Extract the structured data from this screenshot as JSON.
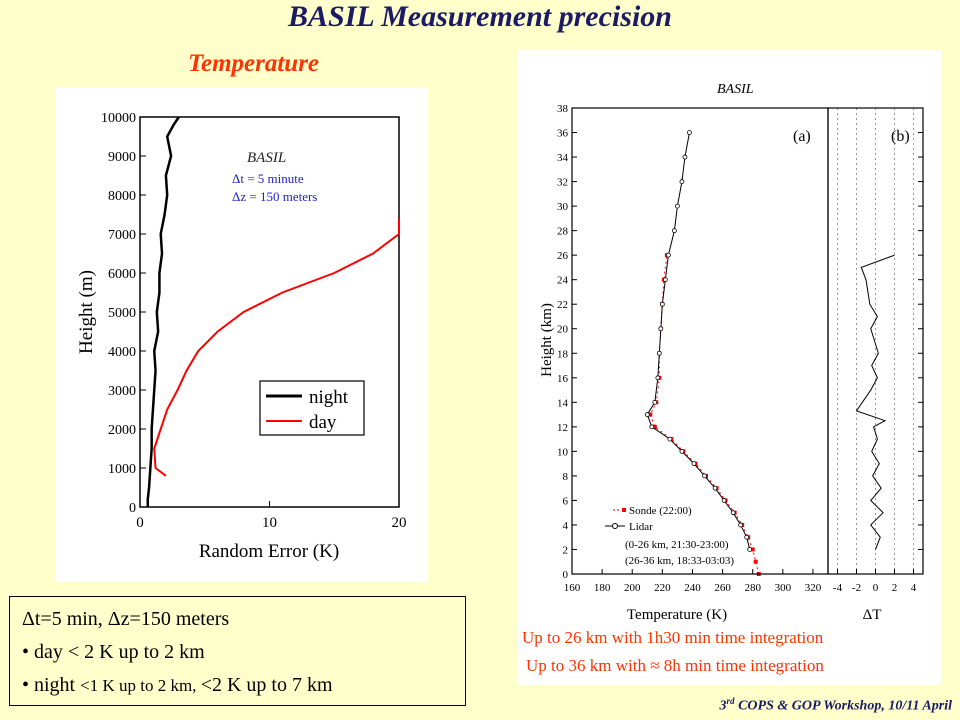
{
  "header": {
    "title": "BASIL Measurement precision",
    "subtitle": "Temperature"
  },
  "notes": {
    "line1": "Δt=5 min, Δz=150 meters",
    "line2": "• day < 2 K up to 2 km",
    "line3a": "• night ",
    "line3b": "<1 K up to 2 km, ",
    "line3c": "<2 K up to 7 km"
  },
  "captions": {
    "line1": "Up to 26 km with 1h30 min time integration",
    "line2": "Up to 36 km with ≈ 8h min time integration"
  },
  "footer": {
    "ord": "3",
    "sup": "rd",
    "text": " COPS & GOP Workshop, 10/11 April"
  },
  "chart_data": [
    {
      "type": "line",
      "xlabel": "Random Error (K)",
      "ylabel": "Height (m)",
      "xlim": [
        0,
        20
      ],
      "ylim": [
        0,
        10000
      ],
      "xticks": [
        0,
        10,
        20
      ],
      "yticks": [
        0,
        1000,
        2000,
        3000,
        4000,
        5000,
        6000,
        7000,
        8000,
        9000,
        10000
      ],
      "annotation": [
        "BASIL",
        "Δt = 5 minute",
        "Δz = 150 meters"
      ],
      "legend": {
        "position": "bottom-right",
        "entries": [
          "night",
          "day"
        ]
      },
      "colors": {
        "night": "#000000",
        "day": "#ff0000"
      },
      "series": [
        {
          "name": "night",
          "points": [
            [
              0.6,
              0
            ],
            [
              0.6,
              200
            ],
            [
              0.7,
              500
            ],
            [
              0.8,
              1000
            ],
            [
              0.9,
              1500
            ],
            [
              0.9,
              2000
            ],
            [
              1.0,
              2500
            ],
            [
              1.1,
              3000
            ],
            [
              1.2,
              3500
            ],
            [
              1.1,
              4000
            ],
            [
              1.4,
              4500
            ],
            [
              1.3,
              5000
            ],
            [
              1.5,
              5500
            ],
            [
              1.5,
              6000
            ],
            [
              1.7,
              6500
            ],
            [
              1.6,
              7000
            ],
            [
              1.9,
              7500
            ],
            [
              2.1,
              8000
            ],
            [
              2.0,
              8500
            ],
            [
              2.4,
              9000
            ],
            [
              2.1,
              9500
            ],
            [
              2.6,
              9800
            ],
            [
              3.0,
              10000
            ]
          ]
        },
        {
          "name": "day",
          "points": [
            [
              2.0,
              800
            ],
            [
              1.2,
              1000
            ],
            [
              1.1,
              1500
            ],
            [
              1.6,
              2000
            ],
            [
              2.1,
              2500
            ],
            [
              2.9,
              3000
            ],
            [
              3.6,
              3500
            ],
            [
              4.5,
              4000
            ],
            [
              6.0,
              4500
            ],
            [
              8.0,
              5000
            ],
            [
              11.0,
              5500
            ],
            [
              15.0,
              6000
            ],
            [
              18.0,
              6500
            ],
            [
              20.0,
              7000
            ],
            [
              20.0,
              7400
            ]
          ]
        }
      ]
    },
    {
      "type": "line",
      "title": "BASIL",
      "panel_labels": [
        "(a)",
        "(b)"
      ],
      "xlabel": "Temperature (K)",
      "ylabel": "Height (km)",
      "xlim": [
        160,
        330
      ],
      "ylim": [
        0,
        38
      ],
      "xticks": [
        160,
        180,
        200,
        220,
        240,
        260,
        280,
        300,
        320
      ],
      "yticks": [
        0,
        2,
        4,
        6,
        8,
        10,
        12,
        14,
        16,
        18,
        20,
        22,
        24,
        26,
        28,
        30,
        32,
        34,
        36,
        38
      ],
      "legend": {
        "position": "bottom-left",
        "entries": [
          "Sonde (22:00)",
          "Lidar",
          "(0-26 km, 21:30-23:00)",
          "(26-36 km, 18:33-03:03)"
        ]
      },
      "series": [
        {
          "name": "Sonde (22:00)",
          "color": "#ff0000",
          "points": [
            [
              284,
              0
            ],
            [
              282,
              1
            ],
            [
              280,
              2
            ],
            [
              277,
              3
            ],
            [
              273,
              4
            ],
            [
              268,
              5
            ],
            [
              262,
              6
            ],
            [
              256,
              7
            ],
            [
              249,
              8
            ],
            [
              242,
              9
            ],
            [
              234,
              10
            ],
            [
              226,
              11
            ],
            [
              215,
              12
            ],
            [
              212,
              13
            ],
            [
              216,
              14
            ],
            [
              218,
              16
            ],
            [
              218,
              18
            ],
            [
              219,
              20
            ],
            [
              220,
              22
            ],
            [
              221,
              24
            ],
            [
              223,
              26
            ]
          ]
        },
        {
          "name": "Lidar",
          "color": "#000000",
          "points": [
            [
              278,
              2
            ],
            [
              276,
              3
            ],
            [
              272,
              4
            ],
            [
              267,
              5
            ],
            [
              261,
              6
            ],
            [
              255,
              7
            ],
            [
              248,
              8
            ],
            [
              241,
              9
            ],
            [
              233,
              10
            ],
            [
              225,
              11
            ],
            [
              213,
              12
            ],
            [
              210,
              13
            ],
            [
              215,
              14
            ],
            [
              217,
              16
            ],
            [
              218,
              18
            ],
            [
              219,
              20
            ],
            [
              220,
              22
            ],
            [
              222,
              24
            ],
            [
              224,
              26
            ],
            [
              228,
              28
            ],
            [
              230,
              30
            ],
            [
              233,
              32
            ],
            [
              235,
              34
            ],
            [
              238,
              36
            ]
          ]
        }
      ]
    },
    {
      "type": "line",
      "xlabel": "ΔT",
      "xlim": [
        -5,
        5
      ],
      "ylim": [
        0,
        38
      ],
      "xticks": [
        -4,
        -2,
        0,
        2,
        4
      ],
      "series": [
        {
          "name": "ΔT",
          "color": "#000000",
          "points": [
            [
              0,
              2
            ],
            [
              0.5,
              3
            ],
            [
              -0.5,
              4
            ],
            [
              0.8,
              5
            ],
            [
              -0.5,
              6
            ],
            [
              0.6,
              7
            ],
            [
              -0.3,
              8
            ],
            [
              0.4,
              9
            ],
            [
              -0.4,
              10
            ],
            [
              0.2,
              11
            ],
            [
              -0.2,
              12
            ],
            [
              1.0,
              12.5
            ],
            [
              -2.0,
              13.3
            ],
            [
              -0.5,
              15
            ],
            [
              0.2,
              16
            ],
            [
              -0.4,
              17
            ],
            [
              0.3,
              18
            ],
            [
              -0.5,
              20
            ],
            [
              0.2,
              21
            ],
            [
              -0.6,
              22
            ],
            [
              -1.0,
              24
            ],
            [
              -1.5,
              25
            ],
            [
              2.0,
              26
            ]
          ]
        }
      ]
    }
  ]
}
